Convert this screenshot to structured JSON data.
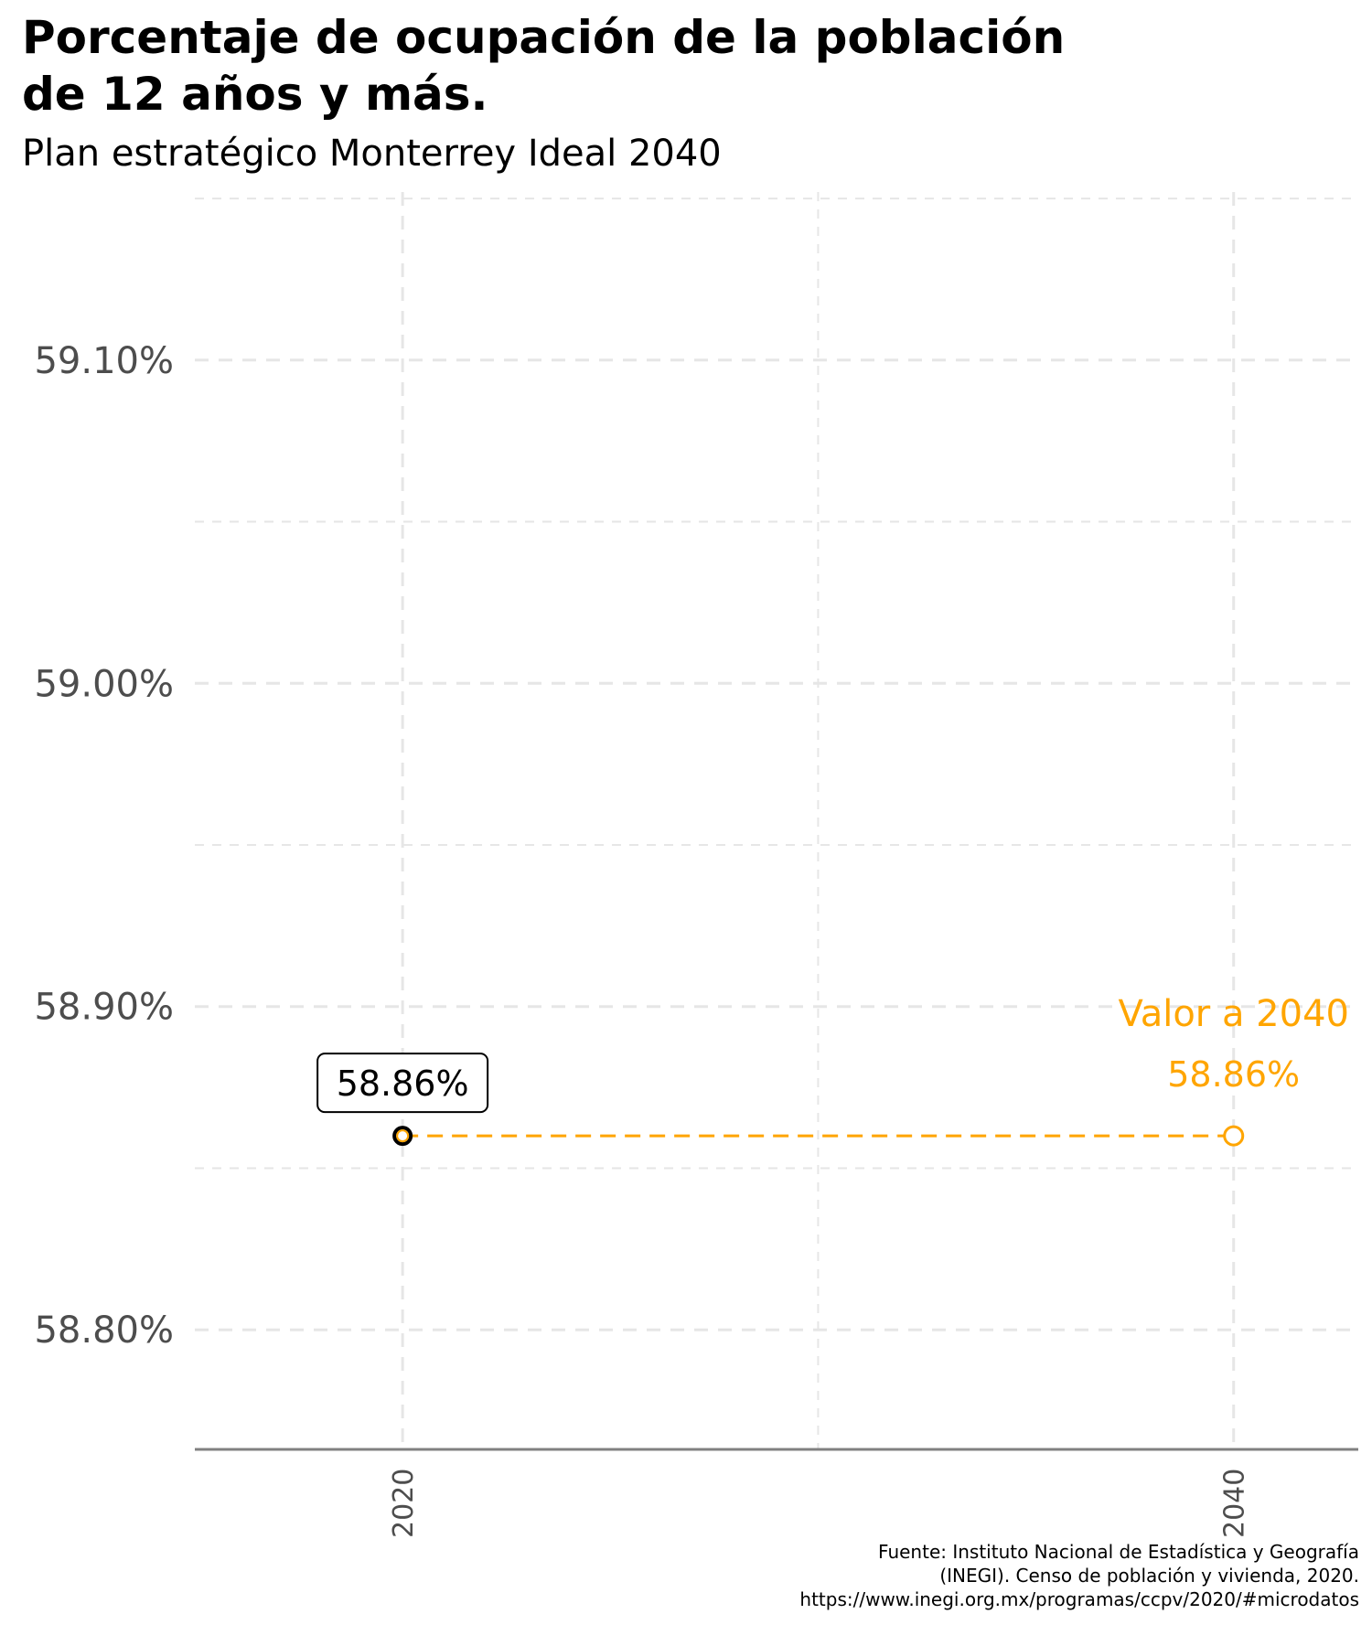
{
  "title": "Porcentaje de ocupación de la población",
  "title_line2": "de 12 años y más.",
  "subtitle": "Plan estratégico Monterrey Ideal 2040",
  "caption": [
    "Fuente: Instituto Nacional de Estadística y Geografía",
    "(INEGI). Censo de población y vivienda, 2020.",
    "https://www.inegi.org.mx/programas/ccpv/2020/#microdatos"
  ],
  "colors": {
    "accent": "#FFA500",
    "grid": "#e6e6e6",
    "axis": "#808080",
    "tick_text": "#4d4d4d"
  },
  "chart_data": {
    "type": "line",
    "x": [
      2020,
      2040
    ],
    "x_tick_labels": [
      "2020",
      "2040"
    ],
    "xlim": [
      2015,
      2043
    ],
    "ylim": [
      58.763,
      59.152
    ],
    "y_ticks": [
      58.8,
      58.9,
      59.0,
      59.1
    ],
    "y_tick_labels": [
      "58.80%",
      "58.90%",
      "59.00%",
      "59.10%"
    ],
    "grid": true,
    "series": [
      {
        "values": [
          58.86,
          58.86
        ],
        "style": "dashed",
        "color": "#FFA500"
      }
    ],
    "annotations": [
      {
        "x": 2020,
        "y": 58.86,
        "text": "58.86%",
        "style": "boxed",
        "color": "#000000"
      },
      {
        "x": 2040,
        "y": 58.86,
        "text": "Valor a 2040",
        "color": "#FFA500"
      },
      {
        "x": 2040,
        "y": 58.86,
        "text": "58.86%",
        "color": "#FFA500"
      }
    ]
  }
}
